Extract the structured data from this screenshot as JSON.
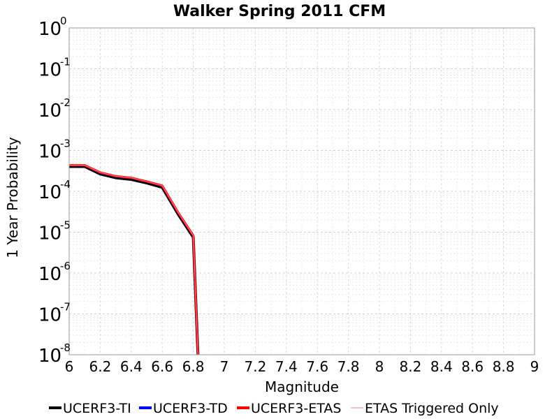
{
  "chart_data": {
    "type": "line",
    "title": "Walker Spring 2011 CFM",
    "xlabel": "Magnitude",
    "ylabel": "1 Year Probability",
    "xlim": [
      6,
      9
    ],
    "ylim": [
      1e-08,
      1
    ],
    "yscale": "log",
    "grid": true,
    "legend_position": "bottom",
    "x_ticks": [
      "6",
      "6.2",
      "6.4",
      "6.6",
      "6.8",
      "7",
      "7.2",
      "7.4",
      "7.6",
      "7.8",
      "8",
      "8.2",
      "8.4",
      "8.6",
      "8.8",
      "9"
    ],
    "y_ticks": [
      {
        "base": "10",
        "exp": "0"
      },
      {
        "base": "10",
        "exp": "-1"
      },
      {
        "base": "10",
        "exp": "-2"
      },
      {
        "base": "10",
        "exp": "-3"
      },
      {
        "base": "10",
        "exp": "-4"
      },
      {
        "base": "10",
        "exp": "-5"
      },
      {
        "base": "10",
        "exp": "-6"
      },
      {
        "base": "10",
        "exp": "-7"
      },
      {
        "base": "10",
        "exp": "-8"
      }
    ],
    "series": [
      {
        "name": "UCERF3-TI",
        "color": "#000000",
        "x": [
          6.0,
          6.1,
          6.2,
          6.3,
          6.4,
          6.5,
          6.6,
          6.7,
          6.8,
          6.83
        ],
        "y": [
          0.000405,
          0.000405,
          0.000265,
          0.000215,
          0.000195,
          0.00016,
          0.000125,
          2.85e-05,
          7.5e-06,
          1e-08
        ]
      },
      {
        "name": "UCERF3-TD",
        "color": "#0000ff",
        "x": [
          6.0,
          6.1,
          6.2,
          6.3,
          6.4,
          6.5,
          6.6,
          6.7,
          6.8,
          6.83
        ],
        "y": [
          0.00043,
          0.00043,
          0.000285,
          0.000232,
          0.000212,
          0.000173,
          0.000136,
          3.1e-05,
          8.2e-06,
          1e-08
        ]
      },
      {
        "name": "UCERF3-ETAS",
        "color": "#ff0000",
        "x": [
          6.0,
          6.1,
          6.2,
          6.3,
          6.4,
          6.5,
          6.6,
          6.7,
          6.8,
          6.83
        ],
        "y": [
          0.000435,
          0.000435,
          0.00029,
          0.000235,
          0.000215,
          0.000175,
          0.000138,
          3.15e-05,
          8.3e-06,
          1e-08
        ]
      },
      {
        "name": "ETAS Triggered Only",
        "color": "#ff8080",
        "x": [
          6.0,
          6.1,
          6.2,
          6.3,
          6.4,
          6.5,
          6.6,
          6.7,
          6.8,
          6.83
        ],
        "y": [
          0.000435,
          0.000435,
          0.00029,
          0.000235,
          0.000215,
          0.000175,
          0.000138,
          3.15e-05,
          8.3e-06,
          1e-08
        ]
      }
    ]
  }
}
